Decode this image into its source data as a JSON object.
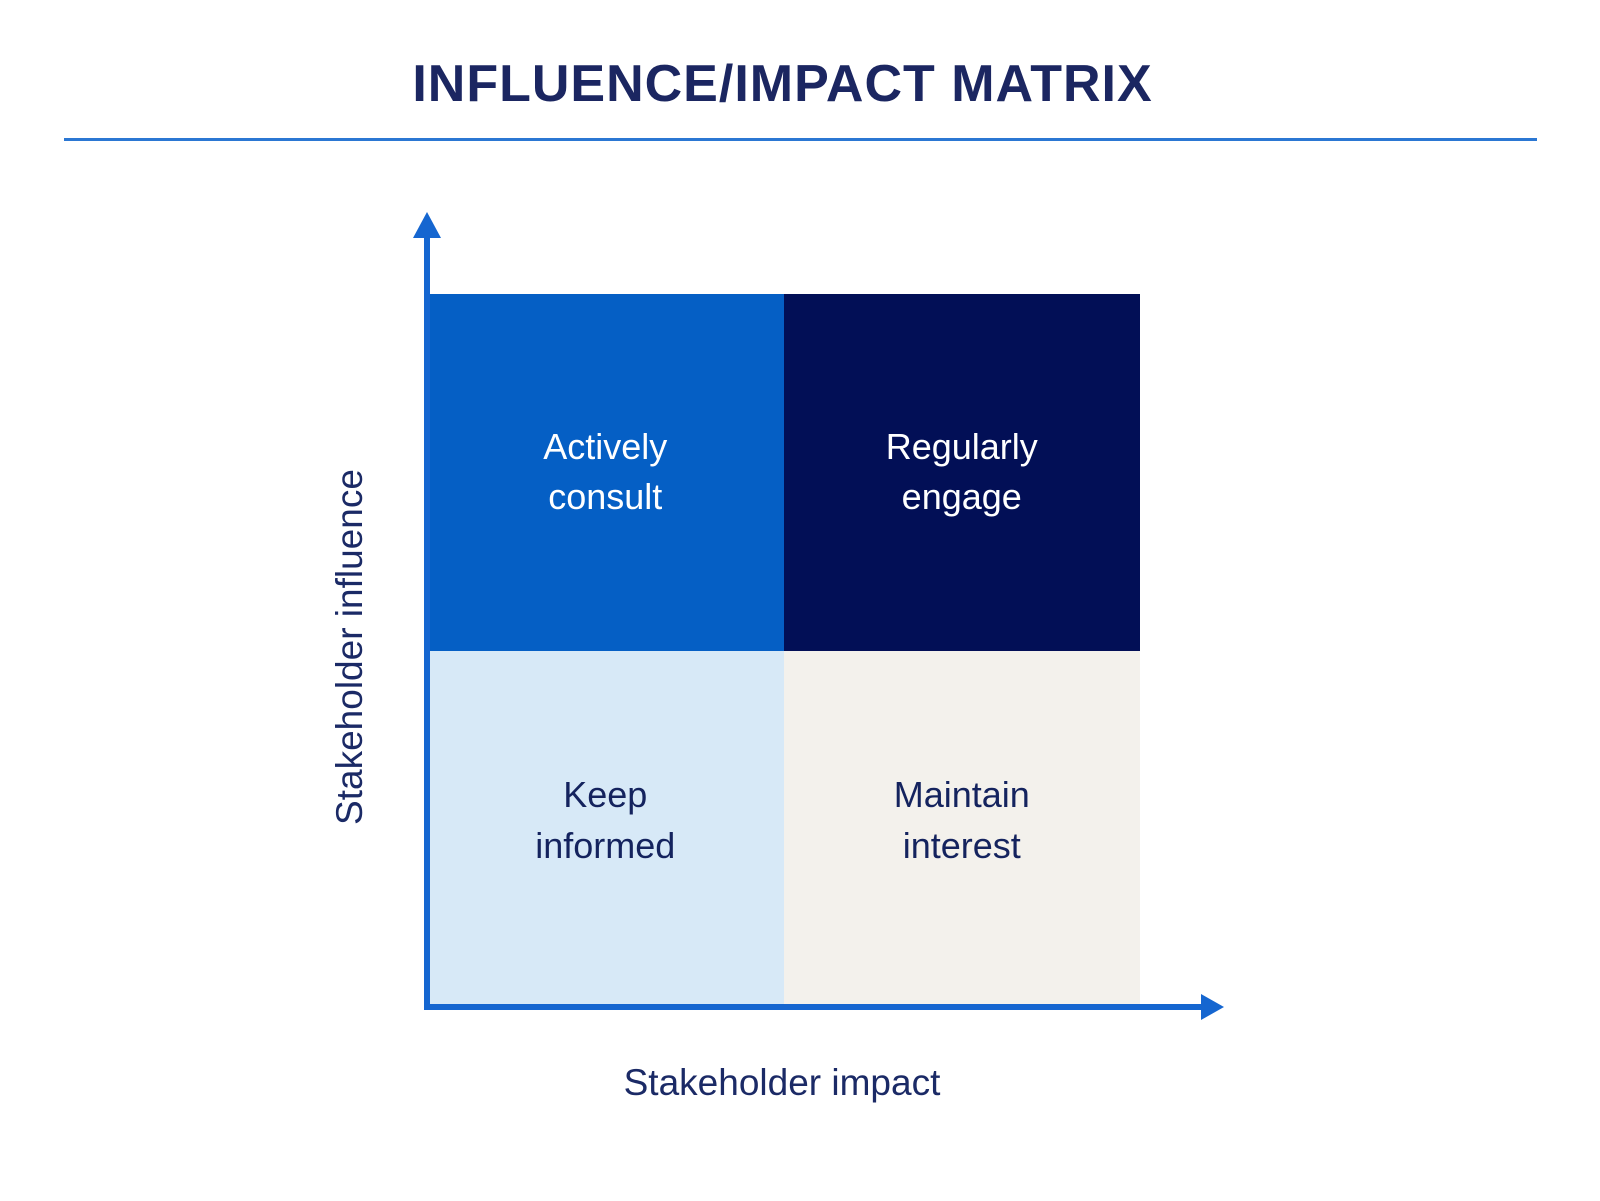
{
  "title": "INFLUENCE/IMPACT MATRIX",
  "axes": {
    "y_label": "Stakeholder influence",
    "x_label": "Stakeholder impact"
  },
  "quadrants": [
    {
      "name": "top-left",
      "label": "Actively consult",
      "line1": "Actively",
      "line2": "consult",
      "bg": "#055fc5",
      "text_color": "#ffffff"
    },
    {
      "name": "top-right",
      "label": "Regularly engage",
      "line1": "Regularly",
      "line2": "engage",
      "bg": "#020f56",
      "text_color": "#ffffff"
    },
    {
      "name": "bottom-left",
      "label": "Keep informed",
      "line1": "Keep",
      "line2": "informed",
      "bg": "#d7e9f7",
      "text_color": "#14235e"
    },
    {
      "name": "bottom-right",
      "label": "Maintain interest",
      "line1": "Maintain",
      "line2": "interest",
      "bg": "#f3f1ec",
      "text_color": "#14235e"
    }
  ],
  "colors": {
    "background": "#ffffff",
    "title_text": "#1b2661",
    "title_rule": "#2b77d3",
    "axis_line": "#1566d0",
    "axis_label_text": "#1b2a66"
  }
}
